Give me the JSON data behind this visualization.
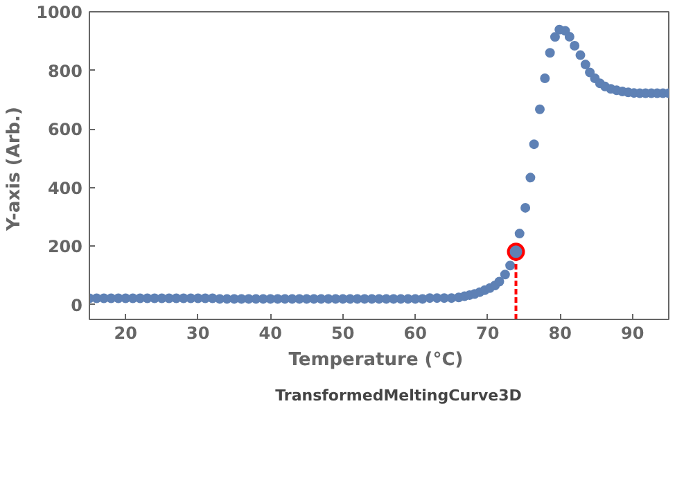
{
  "chart_data": {
    "type": "scatter",
    "xlabel": "Temperature  (°C)",
    "ylabel": "Y-axis  (Arb.)",
    "xlim": [
      15,
      95
    ],
    "ylim": [
      -50,
      1000
    ],
    "xticks": [
      20,
      30,
      40,
      50,
      60,
      70,
      80,
      90
    ],
    "yticks": [
      0,
      200,
      400,
      600,
      800,
      1000
    ],
    "grid": false,
    "legend": "bottom",
    "marker": "circle",
    "series": [
      {
        "name": "TransformedMeltingCurve3D",
        "color": "#5e81b5",
        "x": [
          15,
          16,
          17,
          18,
          19,
          20,
          21,
          22,
          23,
          24,
          25,
          26,
          27,
          28,
          29,
          30,
          31,
          32,
          33,
          34,
          35,
          36,
          37,
          38,
          39,
          40,
          41,
          42,
          43,
          44,
          45,
          46,
          47,
          48,
          49,
          50,
          51,
          52,
          53,
          54,
          55,
          56,
          57,
          58,
          59,
          60,
          61,
          62,
          63,
          64,
          65,
          66,
          66.8,
          67.5,
          68.2,
          68.9,
          69.6,
          70.3,
          71.0,
          71.6,
          72.4,
          73.1,
          74.4,
          75.2,
          75.9,
          76.4,
          77.2,
          77.9,
          78.6,
          79.3,
          79.9,
          80.7,
          81.3,
          82.0,
          82.8,
          83.5,
          84.1,
          84.8,
          85.5,
          86.2,
          87,
          87.8,
          88.6,
          89.4,
          90.2,
          91,
          91.8,
          92.6,
          93.4,
          94.2,
          95
        ],
        "values": [
          22,
          22,
          22,
          22,
          22,
          22,
          22,
          22,
          22,
          22,
          22,
          22,
          22,
          22,
          22,
          22,
          22,
          22,
          20,
          20,
          20,
          20,
          20,
          20,
          20,
          20,
          20,
          20,
          20,
          20,
          20,
          20,
          20,
          20,
          20,
          20,
          20,
          20,
          20,
          20,
          20,
          20,
          20,
          20,
          20,
          20,
          20,
          23,
          23,
          23,
          23,
          25,
          29,
          33,
          37,
          43,
          50,
          57,
          66,
          79,
          103,
          134,
          243,
          331,
          434,
          548,
          667,
          773,
          860,
          914,
          939,
          935,
          915,
          884,
          852,
          820,
          793,
          773,
          756,
          745,
          737,
          732,
          728,
          725,
          723,
          722,
          722,
          722,
          722,
          722,
          722
        ]
      },
      {
        "type": "line",
        "color": "#ff0000",
        "line_style": "dashed",
        "marker": "none",
        "x": [
          73.9,
          73.9
        ],
        "values": [
          -50,
          181
        ]
      },
      {
        "type": "scatter",
        "color": "#ff0000",
        "x": [
          73.9
        ],
        "values": [
          181
        ]
      }
    ]
  }
}
